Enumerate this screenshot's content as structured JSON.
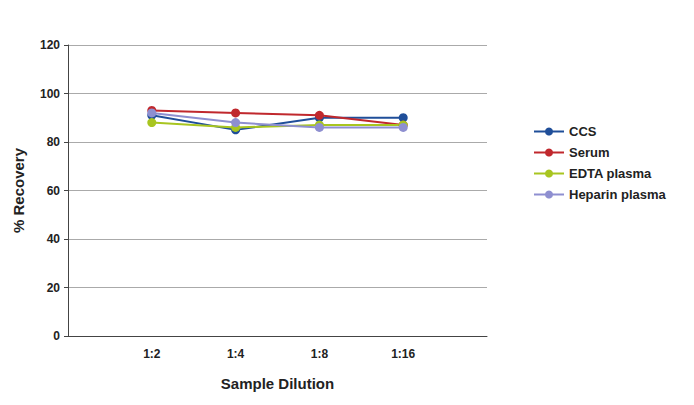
{
  "chart_data": {
    "type": "line",
    "x_label": "Sample Dilution",
    "y_label": "% Recovery",
    "categories": [
      null,
      "1:2",
      "1:4",
      "1:8",
      "1:16",
      null
    ],
    "series": [
      {
        "name": "CCS",
        "color": "#1f4e99",
        "values": [
          null,
          91,
          85,
          90,
          90,
          null
        ]
      },
      {
        "name": "Serum",
        "color": "#c0282d",
        "values": [
          null,
          93,
          92,
          91,
          87,
          null
        ]
      },
      {
        "name": "EDTA plasma",
        "color": "#a8c520",
        "values": [
          null,
          88,
          86,
          87,
          87,
          null
        ]
      },
      {
        "name": "Heparin plasma",
        "color": "#8e8fd0",
        "values": [
          null,
          92,
          88,
          86,
          86,
          null
        ]
      }
    ],
    "ylim": [
      0,
      120
    ],
    "yticks": [
      0,
      20,
      40,
      60,
      80,
      100,
      120
    ],
    "grid": true,
    "legend": "right",
    "marker": "circle"
  }
}
